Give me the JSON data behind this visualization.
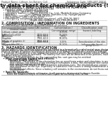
{
  "header_left": "Product Name: Lithium Ion Battery Cell",
  "header_right_line1": "Substance Code: SBN-UBT-00010",
  "header_right_line2": "Established / Revision: Dec.7.2018",
  "title": "Safety data sheet for chemical products (SDS)",
  "section1_title": "1. PRODUCT AND COMPANY IDENTIFICATION",
  "section1_lines": [
    "  • Product name: Lithium Ion Battery Cell",
    "  • Product code: Cylindrical-type cell",
    "       INR18650, INR18650, INR18650A",
    "  • Company name:      Sanyo Electric Co., Ltd., Mobile Energy Company",
    "  • Address:            2001 Kamito-machi, Sumoto-City, Hyogo, Japan",
    "  • Telephone number:  +81-799-26-4111",
    "  • Fax number:  +81-799-26-4122",
    "  • Emergency telephone number (daytime): +81-799-26-3662",
    "                                    (Night and holiday): +81-799-26-4101"
  ],
  "section2_title": "2. COMPOSITION / INFORMATION ON INGREDIENTS",
  "section2_sub1": "  • Substance or preparation: Preparation",
  "section2_sub2": "  • Information about the chemical nature of product",
  "table_col0_top": "Component/chemical name",
  "table_col0_bot": "General name",
  "table_col1": "CAS number",
  "table_col2": "Concentration /\nConcentration range",
  "table_col3": "Classification and\nhazard labeling",
  "table_rows": [
    [
      "Lithium cobalt oxide\n(LiMnxCo(1-x)O2)",
      "-",
      "30-60%",
      "-"
    ],
    [
      "Iron",
      "7439-89-6",
      "16-26%",
      "-"
    ],
    [
      "Aluminum",
      "7429-90-5",
      "2-6%",
      "-"
    ],
    [
      "Graphite\n(Made of graphite-1)\n(All graphite-2)",
      "7782-42-5\n7782-42-5",
      "10-20%",
      "-"
    ],
    [
      "Copper",
      "7440-50-8",
      "5-15%",
      "Sensitization of the skin\ngroup No.2"
    ],
    [
      "Organic electrolyte",
      "-",
      "10-20%",
      "Inflammable liquid"
    ]
  ],
  "section3_title": "3. HAZARDS IDENTIFICATION",
  "section3_para1": "For the battery cell, chemical substances are stored in a hermetically sealed metal case, designed to withstand",
  "section3_para2": "temperatures or pressure-tolerances-characteristics during normal use. As a result, during normal use, there is no",
  "section3_para3": "physical danger of ignition or explosion and there is no danger of hazardous materials leakage.",
  "section3_para4": "    However, if exposed to a fire, added mechanical shocks, decomposed, written electric without any measures,",
  "section3_para5": "the gas release cannot be operated. The battery cell case will be breached of the portions, hazardous",
  "section3_para6": "materials may be released.",
  "section3_para7": "    Moreover, if heated strongly by the surrounding fire, soot gas may be emitted.",
  "s3_bullet1": "  • Most important hazard and effects:",
  "s3_human": "        Human health effects:",
  "s3_inh": "            Inhalation: The release of the electrolyte has an anesthesia action and stimulates in respiratory tract.",
  "s3_skin1": "            Skin contact: The release of the electrolyte stimulates a skin. The electrolyte skin contact causes a",
  "s3_skin2": "            sore and stimulation on the skin.",
  "s3_eye1": "            Eye contact: The release of the electrolyte stimulates eyes. The electrolyte eye contact causes a sore",
  "s3_eye2": "            and stimulation on the eye. Especially, a substance that causes a strong inflammation of the eyes is",
  "s3_eye3": "            contained.",
  "s3_env1": "            Environmental effects: Since a battery cell remains in the environment, do not throw out it into the",
  "s3_env2": "            environment.",
  "s3_bullet2": "  • Specific hazards:",
  "s3_sp1": "        If the electrolyte contacts with water, it will generate detrimental hydrogen fluoride.",
  "s3_sp2": "        Since the lead-electrolyte is inflammable liquid, do not bring close to fire.",
  "bg_color": "#ffffff",
  "text_color": "#1a1a1a",
  "light_gray": "#aaaaaa",
  "table_header_bg": "#d8d8d8",
  "table_border": "#888888"
}
